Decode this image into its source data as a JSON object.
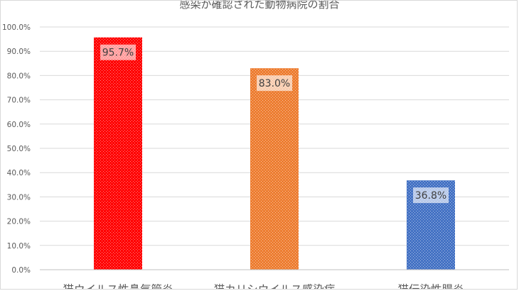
{
  "chart_data": {
    "type": "bar",
    "title": "感染が確認された動物病院の割合",
    "categories": [
      "猫ウイルス性鼻気管炎",
      "猫カリシウイルス感染症",
      "猫伝染性腸炎"
    ],
    "values": [
      95.7,
      83.0,
      36.8
    ],
    "data_labels": [
      "95.7%",
      "83.0%",
      "36.8%"
    ],
    "bar_colors": [
      "#ff0000",
      "#ed7d31",
      "#4472c4"
    ],
    "y_ticks": [
      "0.0%",
      "10.0%",
      "20.0%",
      "30.0%",
      "40.0%",
      "50.0%",
      "60.0%",
      "70.0%",
      "80.0%",
      "90.0%",
      "100.0%"
    ],
    "ylim": [
      0,
      100
    ],
    "grid": true,
    "legend": "none",
    "xlabel": "",
    "ylabel": ""
  }
}
